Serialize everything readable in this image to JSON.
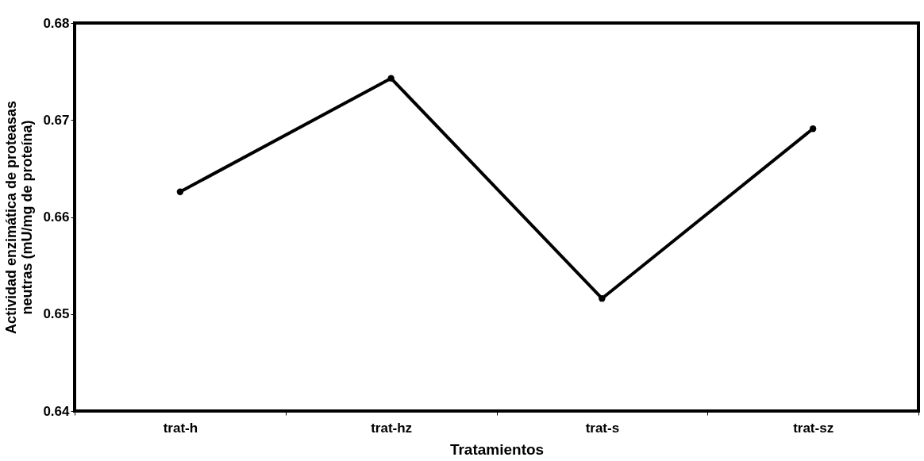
{
  "chart_data": {
    "type": "line",
    "xlabel": "Tratamientos",
    "ylabel": "Actividad enzimática de proteasas\nneutras (mU/mg de proteína)",
    "categories": [
      "trat-h",
      "trat-hz",
      "trat-s",
      "trat-sz"
    ],
    "series": [
      {
        "color": "#000000",
        "values": [
          0.6626,
          0.6743,
          0.6516,
          0.6691
        ]
      }
    ],
    "ylim": [
      0.64,
      0.68
    ],
    "yticks": [
      0.64,
      0.65,
      0.66,
      0.67,
      0.68
    ],
    "grid": false,
    "legend": false,
    "marker": "circle",
    "line_style": "solid"
  }
}
